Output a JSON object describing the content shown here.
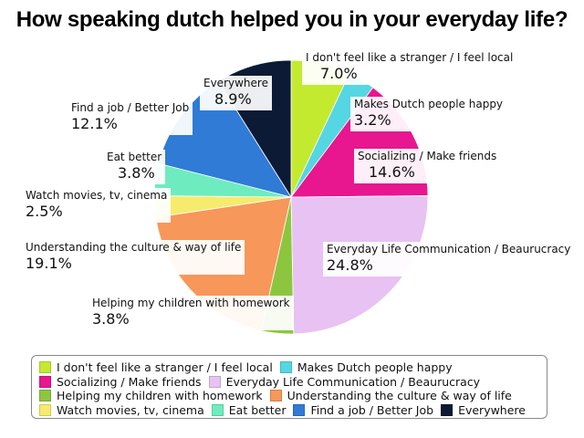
{
  "chart_data": {
    "type": "pie",
    "title": "How speaking dutch helped you in your everyday life?",
    "slices": [
      {
        "label": "I don't feel like a stranger / I feel local",
        "value": 7.0,
        "display": "7.0%",
        "color": "#c3ea2e"
      },
      {
        "label": "Makes Dutch people happy",
        "value": 3.2,
        "display": "3.2%",
        "color": "#55d6e3"
      },
      {
        "label": "Socializing / Make friends",
        "value": 14.6,
        "display": "14.6%",
        "color": "#e8168f"
      },
      {
        "label": "Everyday Life Communication / Beaurucracy",
        "value": 24.8,
        "display": "24.8%",
        "color": "#e7c2f2"
      },
      {
        "label": "Helping my children with homework",
        "value": 3.8,
        "display": "3.8%",
        "color": "#8cc63e"
      },
      {
        "label": "Understanding the culture & way of life",
        "value": 19.1,
        "display": "19.1%",
        "color": "#f7975a"
      },
      {
        "label": "Watch movies, tv, cinema",
        "value": 2.5,
        "display": "2.5%",
        "color": "#f6eb6c"
      },
      {
        "label": "Eat better",
        "value": 3.8,
        "display": "3.8%",
        "color": "#6eecc0"
      },
      {
        "label": "Find a job / Better Job",
        "value": 12.1,
        "display": "12.1%",
        "color": "#2f7bd6"
      },
      {
        "label": "Everywhere",
        "value": 8.9,
        "display": "8.9%",
        "color": "#0c1a36"
      }
    ],
    "legend_rows": [
      [
        0,
        1
      ],
      [
        2,
        3
      ],
      [
        4,
        5
      ],
      [
        6,
        7,
        8,
        9
      ]
    ],
    "legend_position": "bottom"
  }
}
